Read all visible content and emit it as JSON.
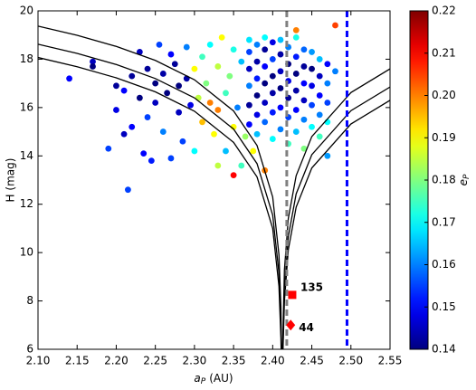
{
  "chart_data": {
    "type": "scatter",
    "ylabel": "H (mag)",
    "xlabel_symbol": "a",
    "xlabel_sub": "P",
    "xlabel_unit": "(AU)",
    "clabel_symbol": "e",
    "clabel_sub": "P",
    "xlim": [
      2.1,
      2.55
    ],
    "xticks": [
      {
        "value": 2.1,
        "label": "2.10"
      },
      2.15,
      {
        "value": 2.2,
        "label": "2.20"
      },
      2.25,
      {
        "value": 2.3,
        "label": "2.30"
      },
      2.35,
      {
        "value": 2.4,
        "label": "2.40"
      },
      2.45,
      {
        "value": 2.5,
        "label": "2.50"
      },
      2.55
    ],
    "ylim": [
      6,
      20
    ],
    "yticks": [
      6,
      8,
      10,
      12,
      14,
      16,
      18,
      20
    ],
    "colormap": "jet",
    "clim": [
      0.14,
      0.22
    ],
    "cticks": [
      0.14,
      0.15,
      0.16,
      0.17,
      0.18,
      0.19,
      {
        "value": 0.2,
        "label": "0.20"
      },
      0.21,
      0.22
    ],
    "x": [
      2.14,
      2.17,
      2.17,
      2.19,
      2.2,
      2.2,
      2.21,
      2.21,
      2.215,
      2.22,
      2.22,
      2.23,
      2.23,
      2.235,
      2.24,
      2.24,
      2.245,
      2.25,
      2.25,
      2.255,
      2.26,
      2.26,
      2.265,
      2.27,
      2.27,
      2.275,
      2.28,
      2.28,
      2.285,
      2.29,
      2.29,
      2.295,
      2.3,
      2.305,
      2.31,
      2.31,
      2.315,
      2.32,
      2.32,
      2.325,
      2.33,
      2.33,
      2.335,
      2.34,
      2.34,
      2.345,
      2.35,
      2.35,
      2.355,
      2.36,
      2.36,
      2.365,
      2.37,
      2.37,
      2.37,
      2.37,
      2.37,
      2.37,
      2.38,
      2.38,
      2.38,
      2.38,
      2.38,
      2.38,
      2.39,
      2.39,
      2.39,
      2.39,
      2.39,
      2.39,
      2.4,
      2.4,
      2.4,
      2.4,
      2.4,
      2.4,
      2.41,
      2.41,
      2.41,
      2.41,
      2.41,
      2.41,
      2.42,
      2.42,
      2.42,
      2.42,
      2.42,
      2.42,
      2.43,
      2.43,
      2.43,
      2.43,
      2.43,
      2.43,
      2.44,
      2.44,
      2.44,
      2.44,
      2.44,
      2.44,
      2.45,
      2.45,
      2.45,
      2.45,
      2.45,
      2.46,
      2.46,
      2.46,
      2.46,
      2.46,
      2.47,
      2.47,
      2.47,
      2.47,
      2.48,
      2.48,
      2.47,
      2.43,
      2.39,
      2.33,
      2.35,
      2.375,
      2.3
    ],
    "y": [
      17.2,
      17.9,
      17.7,
      14.3,
      16.9,
      15.9,
      16.7,
      14.9,
      12.6,
      17.3,
      15.2,
      18.3,
      16.4,
      14.1,
      17.6,
      15.6,
      13.8,
      17.0,
      16.2,
      18.6,
      17.4,
      15.0,
      16.6,
      13.9,
      18.2,
      17.8,
      15.8,
      16.9,
      14.6,
      18.5,
      17.2,
      16.1,
      17.6,
      16.4,
      18.1,
      15.4,
      17.0,
      16.2,
      18.6,
      14.9,
      17.7,
      15.9,
      18.9,
      16.6,
      14.2,
      17.3,
      15.2,
      18.4,
      16.0,
      13.6,
      17.9,
      14.8,
      15.3,
      16.1,
      16.9,
      17.6,
      18.3,
      18.8,
      14.9,
      15.7,
      16.5,
      17.2,
      17.9,
      18.6,
      15.4,
      16.2,
      17.0,
      17.7,
      18.4,
      18.9,
      14.7,
      15.8,
      16.6,
      17.3,
      18.0,
      18.7,
      15.1,
      16.0,
      16.8,
      17.5,
      18.2,
      18.8,
      14.5,
      15.6,
      16.4,
      17.1,
      17.8,
      18.5,
      15.0,
      15.9,
      16.7,
      17.4,
      18.1,
      18.9,
      14.3,
      15.5,
      16.3,
      17.0,
      17.7,
      18.4,
      15.2,
      16.1,
      16.9,
      17.6,
      18.3,
      14.8,
      15.7,
      16.5,
      17.3,
      18.0,
      15.4,
      16.2,
      17.0,
      17.8,
      19.4,
      17.5,
      14.0,
      19.2,
      13.4,
      13.6,
      13.2,
      14.2,
      14.2
    ],
    "c": [
      0.15,
      0.145,
      0.14,
      0.155,
      0.142,
      0.148,
      0.15,
      0.145,
      0.155,
      0.142,
      0.15,
      0.145,
      0.14,
      0.15,
      0.142,
      0.155,
      0.152,
      0.14,
      0.145,
      0.155,
      0.143,
      0.16,
      0.14,
      0.155,
      0.15,
      0.142,
      0.145,
      0.14,
      0.155,
      0.16,
      0.143,
      0.148,
      0.19,
      0.185,
      0.175,
      0.195,
      0.18,
      0.2,
      0.17,
      0.19,
      0.185,
      0.2,
      0.19,
      0.175,
      0.165,
      0.18,
      0.19,
      0.172,
      0.16,
      0.175,
      0.165,
      0.182,
      0.15,
      0.142,
      0.16,
      0.145,
      0.155,
      0.168,
      0.165,
      0.148,
      0.14,
      0.152,
      0.143,
      0.16,
      0.158,
      0.145,
      0.14,
      0.15,
      0.142,
      0.17,
      0.17,
      0.152,
      0.143,
      0.14,
      0.155,
      0.148,
      0.16,
      0.15,
      0.14,
      0.145,
      0.143,
      0.165,
      0.175,
      0.155,
      0.142,
      0.148,
      0.14,
      0.16,
      0.165,
      0.15,
      0.143,
      0.14,
      0.152,
      0.172,
      0.18,
      0.16,
      0.145,
      0.15,
      0.142,
      0.158,
      0.17,
      0.155,
      0.148,
      0.14,
      0.162,
      0.175,
      0.16,
      0.15,
      0.145,
      0.165,
      0.17,
      0.155,
      0.16,
      0.15,
      0.205,
      0.16,
      0.162,
      0.2,
      0.2,
      0.185,
      0.21,
      0.19,
      0.17
    ],
    "curves": [
      {
        "x": [
          2.1,
          2.15,
          2.2,
          2.25,
          2.3,
          2.35,
          2.38,
          2.4,
          2.408,
          2.4105,
          2.41134,
          2.41266,
          2.415,
          2.42,
          2.43,
          2.45,
          2.5,
          2.55
        ],
        "y": [
          19.37,
          18.99,
          18.53,
          17.95,
          17.15,
          15.86,
          14.43,
          12.3,
          9.91,
          7.78,
          6,
          6,
          9.29,
          11.42,
          13.18,
          14.8,
          16.62,
          17.6
        ]
      },
      {
        "x": [
          2.1,
          2.15,
          2.2,
          2.25,
          2.3,
          2.35,
          2.38,
          2.4,
          2.408,
          2.4105,
          2.41107,
          2.41293,
          2.415,
          2.42,
          2.43,
          2.45,
          2.5,
          2.55
        ],
        "y": [
          18.62,
          18.24,
          17.78,
          17.2,
          16.4,
          15.11,
          13.68,
          11.55,
          9.16,
          7.03,
          6,
          6,
          8.54,
          10.67,
          12.43,
          14.05,
          15.87,
          16.85
        ]
      },
      {
        "x": [
          2.1,
          2.15,
          2.2,
          2.25,
          2.3,
          2.35,
          2.38,
          2.4,
          2.408,
          2.4105,
          2.4108,
          2.4132,
          2.415,
          2.42,
          2.43,
          2.45,
          2.5,
          2.55
        ],
        "y": [
          18.07,
          17.69,
          17.23,
          16.65,
          15.85,
          14.56,
          13.13,
          11.0,
          8.61,
          6.48,
          6,
          6,
          7.99,
          10.12,
          11.88,
          13.5,
          15.32,
          16.3
        ]
      }
    ],
    "curve_color": "#000000",
    "vlines": [
      {
        "x": 2.418,
        "color": "#808080"
      },
      {
        "x": 2.495,
        "color": "#0000ff"
      }
    ],
    "markers": [
      {
        "shape": "square",
        "x": 2.425,
        "y": 8.25,
        "label": "135",
        "color": "#ff0000"
      },
      {
        "shape": "diamond",
        "x": 2.423,
        "y": 7.0,
        "label": "44",
        "color": "#ff0000"
      }
    ]
  }
}
